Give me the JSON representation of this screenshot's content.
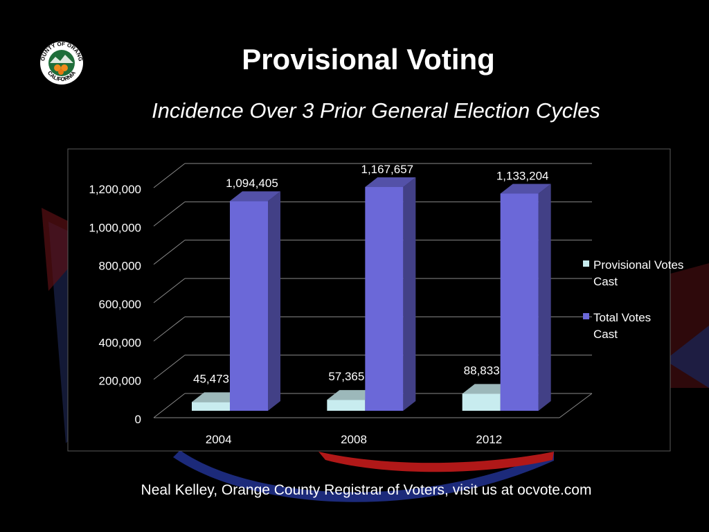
{
  "slide": {
    "title": "Provisional Voting",
    "subtitle": "Incidence Over 3 Prior General Election Cycles",
    "footer": "Neal Kelley, Orange County Registrar of Voters, visit us at ocvote.com",
    "logo_text_top": "COUNTY OF ORANGE",
    "logo_text_bottom": "CALIFORNIA"
  },
  "colors": {
    "background": "#000000",
    "provisional": "#c8ecef",
    "total": "#6b68d8"
  },
  "chart_data": {
    "type": "bar",
    "categories": [
      "2004",
      "2008",
      "2012"
    ],
    "series": [
      {
        "name": "Provisional Votes Cast",
        "values": [
          45473,
          57365,
          88833
        ],
        "labels": [
          "45,473",
          "57,365",
          "88,833"
        ]
      },
      {
        "name": "Total Votes Cast",
        "values": [
          1094405,
          1167657,
          1133204
        ],
        "labels": [
          "1,094,405",
          "1,167,657",
          "1,133,204"
        ]
      }
    ],
    "yticks": [
      "0",
      "200,000",
      "400,000",
      "600,000",
      "800,000",
      "1,000,000",
      "1,200,000"
    ],
    "ylim": [
      0,
      1200000
    ],
    "legend_position": "right",
    "grid": true
  }
}
